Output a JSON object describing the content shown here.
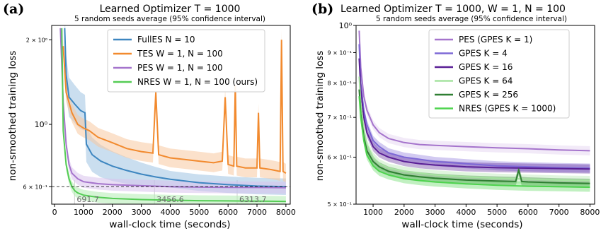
{
  "colors": {
    "fulles": "#3d86c0",
    "fulles_band": "#9fc3e2",
    "tes": "#f28a2e",
    "tes_band": "#f7c8a0",
    "pes": "#a574cc",
    "pes_band": "#d9c2ec",
    "nres": "#55cc55",
    "nres_band": "#b2ecb2",
    "gpes4": "#7d68d6",
    "gpes16": "#5a1f96",
    "gpes64": "#a6e3a0",
    "gpes256": "#2f7f32",
    "nresb": "#4ed44e"
  },
  "chart_data": [
    {
      "panel": "(a)",
      "type": "line",
      "title": "Learned Optimizer T = 1000",
      "subtitle": "5 random seeds average (95% confidence interval)",
      "xlabel": "wall-clock time (seconds)",
      "ylabel": "non-smoothed training loss",
      "log_y": true,
      "xlim": [
        -100,
        8150
      ],
      "ylim": [
        0.52,
        2.25
      ],
      "xticks": [
        0,
        1000,
        2000,
        3000,
        4000,
        5000,
        6000,
        7000,
        8000
      ],
      "xtick_labels": [
        "0",
        "1000",
        "2000",
        "3000",
        "4000",
        "5000",
        "6000",
        "7000",
        "8000"
      ],
      "yticks": [
        {
          "value": 2.0,
          "label": "2 × 10⁰",
          "small": true
        },
        {
          "value": 1.0,
          "label": "10⁰",
          "small": false
        },
        {
          "value": 0.6,
          "label": "6 × 10⁻¹",
          "small": true
        }
      ],
      "hline": 0.6,
      "annotations": [
        {
          "x": 691.7,
          "label": "691.7"
        },
        {
          "x": 3456.6,
          "label": "3456.6"
        },
        {
          "x": 6313.7,
          "label": "6313.7"
        }
      ],
      "legend_position": "top-right",
      "series": [
        {
          "name": "FullES N = 10",
          "key": "fulles",
          "x": [
            350,
            400,
            500,
            700,
            900,
            1050,
            1100,
            1300,
            1600,
            2000,
            2500,
            3000,
            3500,
            4000,
            5000,
            6000,
            7000,
            8000
          ],
          "y": [
            2.2,
            1.5,
            1.25,
            1.18,
            1.12,
            1.1,
            0.85,
            0.78,
            0.74,
            0.71,
            0.685,
            0.665,
            0.65,
            0.638,
            0.62,
            0.61,
            0.603,
            0.6
          ]
        },
        {
          "name": "TES W = 1, N = 100",
          "key": "tes",
          "x": [
            300,
            400,
            600,
            800,
            1000,
            1200,
            1500,
            2000,
            2500,
            3000,
            3400,
            3500,
            3600,
            4000,
            4500,
            5000,
            5500,
            5800,
            5900,
            6000,
            6200,
            6250,
            6300,
            6600,
            7000,
            7050,
            7100,
            7500,
            7800,
            7850,
            7900,
            8000
          ],
          "y": [
            1.9,
            1.3,
            1.1,
            1.0,
            0.97,
            0.95,
            0.9,
            0.86,
            0.82,
            0.8,
            0.79,
            1.3,
            0.78,
            0.76,
            0.75,
            0.74,
            0.73,
            0.74,
            1.25,
            0.72,
            0.71,
            1.38,
            0.71,
            0.7,
            0.7,
            1.1,
            0.7,
            0.69,
            0.68,
            2.0,
            0.68,
            0.67
          ]
        },
        {
          "name": "PES W = 1, N = 100",
          "key": "pes",
          "x": [
            200,
            300,
            400,
            500,
            600,
            800,
            1000,
            1500,
            2000,
            3000,
            4000,
            5000,
            6000,
            7000,
            8000
          ],
          "y": [
            2.2,
            1.2,
            0.85,
            0.72,
            0.67,
            0.64,
            0.625,
            0.615,
            0.61,
            0.605,
            0.6,
            0.598,
            0.597,
            0.596,
            0.595
          ]
        },
        {
          "name": "NRES W = 1, N = 100 (ours)",
          "key": "nres",
          "x": [
            250,
            300,
            400,
            500,
            600,
            700,
            800,
            1000,
            1500,
            2000,
            3000,
            4000,
            5000,
            6000,
            7000,
            8000
          ],
          "y": [
            2.2,
            0.95,
            0.72,
            0.64,
            0.6,
            0.58,
            0.57,
            0.56,
            0.55,
            0.545,
            0.54,
            0.537,
            0.535,
            0.534,
            0.533,
            0.532
          ]
        }
      ]
    },
    {
      "panel": "(b)",
      "type": "line",
      "title": "Learned Optimizer T = 1000, W = 1, N = 100",
      "subtitle": "5 random seeds average (95% confidence interval)",
      "xlabel": "wall-clock time (seconds)",
      "ylabel": "non-smoothed training loss",
      "log_y": true,
      "xlim": [
        450,
        8150
      ],
      "ylim": [
        0.5,
        1.0
      ],
      "xticks": [
        1000,
        2000,
        3000,
        4000,
        5000,
        6000,
        7000,
        8000
      ],
      "xtick_labels": [
        "1000",
        "2000",
        "3000",
        "4000",
        "5000",
        "6000",
        "7000",
        "8000"
      ],
      "yticks": [
        {
          "value": 1.0,
          "label": "10⁰",
          "small": false
        },
        {
          "value": 0.9,
          "label": "9 × 10⁻¹",
          "small": true
        },
        {
          "value": 0.8,
          "label": "8 × 10⁻¹",
          "small": true
        },
        {
          "value": 0.7,
          "label": "7 × 10⁻¹",
          "small": true
        },
        {
          "value": 0.6,
          "label": "6 × 10⁻¹",
          "small": true
        },
        {
          "value": 0.5,
          "label": "5 × 10⁻¹",
          "small": true
        }
      ],
      "legend_position": "top-right",
      "series": [
        {
          "name": "PES (GPES K = 1)",
          "key": "pes",
          "x": [
            550,
            600,
            700,
            800,
            1000,
            1200,
            1500,
            2000,
            2500,
            3000,
            4000,
            5000,
            6000,
            7000,
            8000
          ],
          "y": [
            0.98,
            0.85,
            0.76,
            0.72,
            0.68,
            0.66,
            0.645,
            0.635,
            0.63,
            0.628,
            0.625,
            0.622,
            0.62,
            0.617,
            0.615
          ]
        },
        {
          "name": "GPES K = 4",
          "key": "gpes4",
          "x": [
            550,
            600,
            700,
            800,
            1000,
            1200,
            1500,
            2000,
            2500,
            3000,
            4000,
            5000,
            6000,
            7000,
            8000
          ],
          "y": [
            0.93,
            0.8,
            0.72,
            0.68,
            0.64,
            0.625,
            0.61,
            0.6,
            0.595,
            0.59,
            0.585,
            0.58,
            0.578,
            0.576,
            0.575
          ]
        },
        {
          "name": "GPES K = 16",
          "key": "gpes16",
          "x": [
            550,
            600,
            700,
            800,
            1000,
            1200,
            1500,
            2000,
            2500,
            3000,
            4000,
            5000,
            6000,
            7000,
            8000
          ],
          "y": [
            0.88,
            0.78,
            0.7,
            0.66,
            0.625,
            0.61,
            0.6,
            0.59,
            0.585,
            0.582,
            0.578,
            0.576,
            0.575,
            0.574,
            0.573
          ]
        },
        {
          "name": "GPES K = 64",
          "key": "gpes64",
          "x": [
            550,
            600,
            700,
            800,
            1000,
            1200,
            1500,
            2000,
            2500,
            3000,
            4000,
            5000,
            6000,
            7000,
            8000
          ],
          "y": [
            0.82,
            0.74,
            0.67,
            0.63,
            0.6,
            0.585,
            0.575,
            0.568,
            0.564,
            0.56,
            0.556,
            0.553,
            0.551,
            0.549,
            0.548
          ]
        },
        {
          "name": "GPES K = 256",
          "key": "gpes256",
          "x": [
            550,
            600,
            700,
            800,
            1000,
            1200,
            1500,
            2000,
            2500,
            3000,
            4000,
            5000,
            5600,
            5700,
            5800,
            6000,
            7000,
            8000
          ],
          "y": [
            0.78,
            0.71,
            0.65,
            0.615,
            0.59,
            0.578,
            0.568,
            0.56,
            0.556,
            0.553,
            0.549,
            0.547,
            0.546,
            0.57,
            0.546,
            0.545,
            0.543,
            0.542
          ]
        },
        {
          "name": "NRES (GPES K = 1000)",
          "key": "nresb",
          "x": [
            550,
            600,
            700,
            800,
            1000,
            1200,
            1500,
            2000,
            2500,
            3000,
            4000,
            5000,
            6000,
            7000,
            8000
          ],
          "y": [
            0.76,
            0.7,
            0.64,
            0.605,
            0.58,
            0.568,
            0.56,
            0.552,
            0.548,
            0.545,
            0.541,
            0.538,
            0.536,
            0.535,
            0.534
          ]
        }
      ]
    }
  ]
}
